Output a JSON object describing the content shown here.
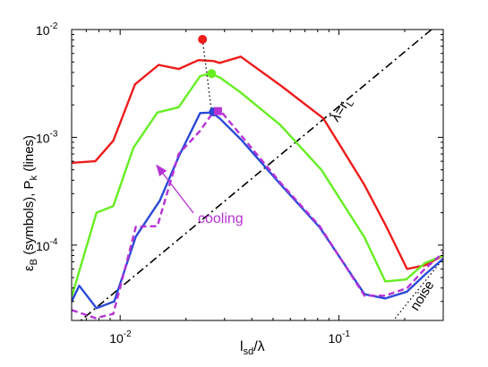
{
  "chart_data": {
    "type": "line",
    "title": "",
    "xlabel_main": "l",
    "xlabel_sub": "sd",
    "xlabel_tail": "/λ",
    "ylabel_a": "ε",
    "ylabel_a_sub": "B",
    "ylabel_b": " (symbols),  P",
    "ylabel_b_sub": "k",
    "ylabel_c": " (lines)",
    "x_scale": "log",
    "y_scale": "log",
    "xlim": [
      0.006,
      0.3
    ],
    "ylim": [
      2e-05,
      0.01
    ],
    "x_ticks": [
      {
        "value": 0.01,
        "base": "10",
        "exp": "-2"
      },
      {
        "value": 0.1,
        "base": "10",
        "exp": "-1"
      }
    ],
    "y_ticks": [
      {
        "value": 0.0001,
        "base": "10",
        "exp": "-4"
      },
      {
        "value": 0.001,
        "base": "10",
        "exp": "-3"
      },
      {
        "value": 0.01,
        "base": "10",
        "exp": "-2"
      }
    ],
    "grid": false,
    "series": [
      {
        "color": "#ee1c1c",
        "style": "solid",
        "x": [
          0.006,
          0.0077,
          0.0093,
          0.0117,
          0.015,
          0.0185,
          0.0228,
          0.0267,
          0.0285,
          0.0356,
          0.0545,
          0.0849,
          0.131,
          0.163,
          0.205,
          0.247,
          0.3
        ],
        "y": [
          0.00058,
          0.0006,
          0.00093,
          0.0031,
          0.0047,
          0.0043,
          0.0052,
          0.0051,
          0.0049,
          0.0056,
          0.003,
          0.0015,
          0.00036,
          0.000155,
          6e-05,
          6.5e-05,
          8e-05
        ]
      },
      {
        "color": "#66ee22",
        "style": "solid",
        "x": [
          0.006,
          0.0078,
          0.0093,
          0.0115,
          0.0148,
          0.0185,
          0.0232,
          0.0257,
          0.0285,
          0.0356,
          0.054,
          0.0832,
          0.131,
          0.163,
          0.203,
          0.247,
          0.3
        ],
        "y": [
          3.3e-05,
          0.0002,
          0.00023,
          0.0008,
          0.0017,
          0.0019,
          0.0037,
          0.0039,
          0.0036,
          0.0026,
          0.0013,
          0.0005,
          0.000118,
          4.6e-05,
          4.8e-05,
          6.8e-05,
          8e-05
        ]
      },
      {
        "color": "#2b4ad8",
        "style": "solid",
        "x": [
          0.006,
          0.0065,
          0.0078,
          0.0094,
          0.0118,
          0.0152,
          0.0185,
          0.0232,
          0.0263,
          0.0285,
          0.0356,
          0.0552,
          0.0817,
          0.131,
          0.163,
          0.205,
          0.247,
          0.3
        ],
        "y": [
          3e-05,
          4.2e-05,
          2.6e-05,
          3e-05,
          0.00012,
          0.00026,
          0.00066,
          0.00168,
          0.0017,
          0.0015,
          0.00096,
          0.00035,
          0.000146,
          3.5e-05,
          3.2e-05,
          3.7e-05,
          5.3e-05,
          7.5e-05
        ]
      },
      {
        "color": "#b533d6",
        "style": "dashed",
        "x": [
          0.006,
          0.0077,
          0.0093,
          0.0118,
          0.0148,
          0.0185,
          0.0232,
          0.0263,
          0.0285,
          0.0356,
          0.054,
          0.0817,
          0.131,
          0.163,
          0.205,
          0.247,
          0.3
        ],
        "y": [
          2.5e-05,
          2.1e-05,
          2.3e-05,
          0.000148,
          0.00015,
          0.0007,
          0.00115,
          0.00165,
          0.0018,
          0.00105,
          0.00038,
          0.00015,
          3.4e-05,
          3.4e-05,
          4e-05,
          6e-05,
          8.5e-05
        ]
      }
    ],
    "points": [
      {
        "color": "#ee1c1c",
        "shape": "circle",
        "x": 0.0238,
        "y": 0.0081
      },
      {
        "color": "#66ee22",
        "shape": "circle",
        "x": 0.0262,
        "y": 0.0039
      },
      {
        "color": "#2b4ad8",
        "shape": "circle",
        "x": 0.0267,
        "y": 0.00172
      },
      {
        "color": "#b533d6",
        "shape": "square",
        "x": 0.028,
        "y": 0.00175
      }
    ],
    "reference_lines": [
      {
        "label": "λ=r",
        "label_sub": "L",
        "style": "dashdot",
        "x": [
          0.006,
          0.3
        ],
        "y": [
          1.7e-05,
          0.0123
        ]
      },
      {
        "label": "noise",
        "style": "dotted",
        "x": [
          0.135,
          0.3
        ],
        "y": [
          1e-05,
          7.5e-05
        ]
      }
    ],
    "connector": {
      "x": 0.0238,
      "y": [
        0.0081,
        0.00172
      ]
    },
    "annotation": {
      "text": "cooling",
      "color": "#b533d6",
      "arrow_to": {
        "x": 0.0147,
        "y": 0.00055
      }
    }
  }
}
